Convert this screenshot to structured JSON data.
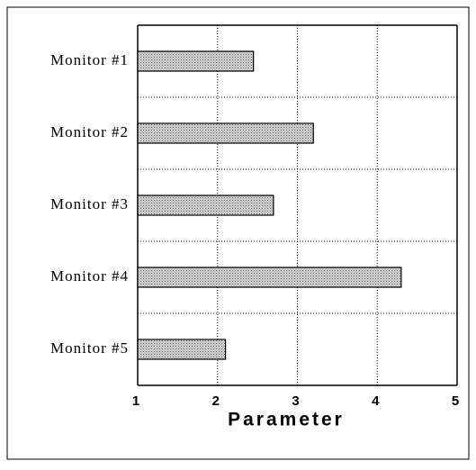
{
  "chart_data": {
    "type": "hbar",
    "categories": [
      "Monitor #1",
      "Monitor #2",
      "Monitor #3",
      "Monitor #4",
      "Monitor #5"
    ],
    "values": [
      2.45,
      3.2,
      2.7,
      4.3,
      2.1
    ],
    "color": "#bdbdbd",
    "xlabel": "Parameter",
    "xlim": [
      1,
      5
    ],
    "xticks": [
      1,
      2,
      3,
      4,
      5
    ],
    "grid": true
  }
}
